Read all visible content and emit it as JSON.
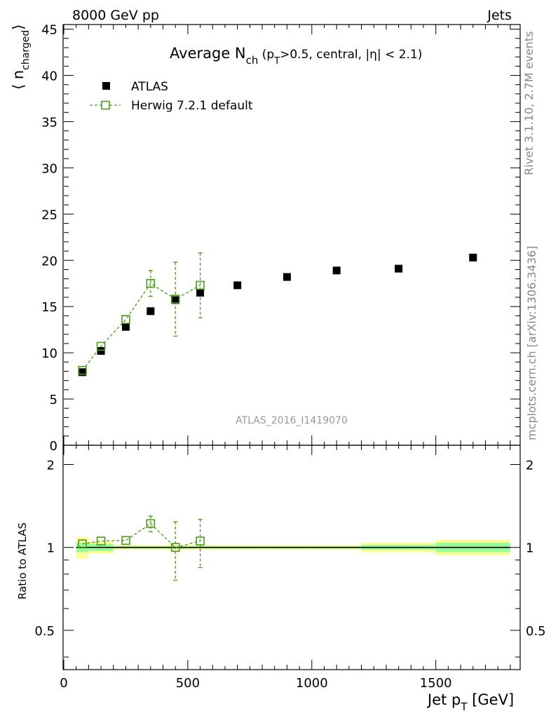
{
  "header": {
    "left": "8000 GeV pp",
    "right": "Jets"
  },
  "side_labels": {
    "rivet": "Rivet 3.1.10,  2.7M events",
    "mcplots": "mcplots.cern.ch [arXiv:1306.3436]"
  },
  "watermark": "ATLAS_2016_I1419070",
  "chart_data": [
    {
      "type": "scatter",
      "title": "Average N_ch (p_T>0.5, central, |η| < 2.1)",
      "title_parts": {
        "main": "Average N",
        "main_sub": "ch",
        "cond_open": " (p",
        "cond_sub": "T",
        "cond_rest": ">0.5, central, |η| < 2.1)"
      },
      "ylabel": "⟨ n_charged ⟩",
      "ylabel_parts": {
        "open": "⟨ n",
        "sub": "charged",
        "close": "⟩"
      },
      "xlim": [
        0,
        1840
      ],
      "ylim": [
        0,
        45.5
      ],
      "y_ticks": [
        0,
        5,
        10,
        15,
        20,
        25,
        30,
        35,
        40,
        45
      ],
      "legend": {
        "position": "top-left",
        "entries": [
          "ATLAS",
          "Herwig 7.2.1 default"
        ]
      },
      "series": [
        {
          "name": "ATLAS",
          "style": "square-filled",
          "color": "#000000",
          "x": [
            75,
            150,
            250,
            350,
            450,
            550,
            700,
            900,
            1100,
            1350,
            1650
          ],
          "y": [
            7.9,
            10.2,
            12.8,
            14.5,
            15.7,
            16.5,
            17.3,
            18.2,
            18.9,
            19.1,
            20.3
          ]
        },
        {
          "name": "Herwig 7.2.1 default",
          "style": "square-open-dashed",
          "color": "#4d9919",
          "x": [
            75,
            150,
            250,
            350,
            450,
            550
          ],
          "y": [
            8.1,
            10.7,
            13.6,
            17.5,
            15.8,
            17.3
          ],
          "err": [
            0.3,
            0.3,
            0.3,
            1.4,
            4.0,
            3.5
          ]
        }
      ]
    },
    {
      "type": "scatter",
      "ylabel": "Ratio to ATLAS",
      "xlabel": "Jet p_T [GeV]",
      "xlabel_parts": {
        "main": "Jet p",
        "sub": "T",
        "rest": " [GeV]"
      },
      "xlim": [
        0,
        1840
      ],
      "x_ticks": [
        0,
        500,
        1000,
        1500
      ],
      "ylim": [
        0.36,
        2.35
      ],
      "y_scale": "log",
      "y_ticks": [
        0.5,
        1,
        2
      ],
      "y_tick_labels": [
        "0.5",
        "1",
        "2"
      ],
      "reference": 1,
      "bands": {
        "bin_edges": [
          50,
          100,
          200,
          300,
          400,
          500,
          600,
          800,
          1000,
          1200,
          1500,
          1800
        ],
        "inner_half": [
          0.04,
          0.03,
          0.01,
          0.01,
          0.01,
          0.01,
          0.01,
          0.01,
          0.01,
          0.02,
          0.04
        ],
        "outer_half": [
          0.09,
          0.05,
          0.02,
          0.02,
          0.02,
          0.02,
          0.02,
          0.02,
          0.02,
          0.04,
          0.065
        ],
        "inner_color": "#99ff99",
        "outer_color": "#ffff99"
      },
      "series": [
        {
          "name": "Herwig 7.2.1 default",
          "style": "square-open-dashed",
          "color": "#4d9919",
          "x": [
            75,
            150,
            250,
            350,
            450,
            550
          ],
          "y": [
            1.03,
            1.055,
            1.06,
            1.22,
            1.0,
            1.055
          ],
          "err": [
            0.03,
            0.02,
            0.02,
            0.08,
            0.24,
            0.21
          ]
        }
      ]
    }
  ]
}
